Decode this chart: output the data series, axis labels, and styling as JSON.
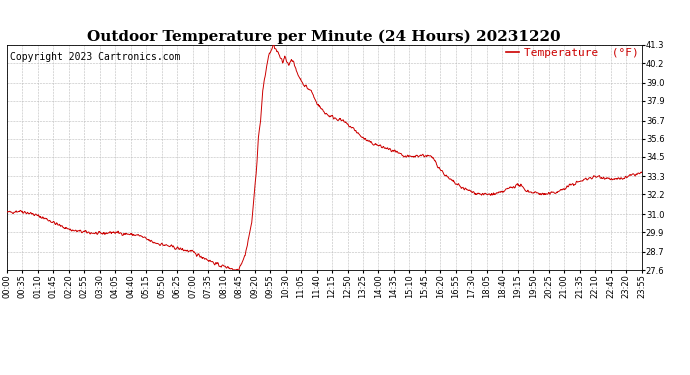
{
  "title": "Outdoor Temperature per Minute (24 Hours) 20231220",
  "copyright": "Copyright 2023 Cartronics.com",
  "legend_label": "Temperature  (°F)",
  "line_color": "#cc0000",
  "legend_color": "#cc0000",
  "background_color": "#ffffff",
  "grid_color": "#bbbbbb",
  "text_color": "#000000",
  "ylim": [
    27.6,
    41.3
  ],
  "yticks": [
    27.6,
    28.7,
    29.9,
    31.0,
    32.2,
    33.3,
    34.5,
    35.6,
    36.7,
    37.9,
    39.0,
    40.2,
    41.3
  ],
  "xtick_labels": [
    "00:00",
    "00:35",
    "01:10",
    "01:45",
    "02:20",
    "02:55",
    "03:30",
    "04:05",
    "04:40",
    "05:15",
    "05:50",
    "06:25",
    "07:00",
    "07:35",
    "08:10",
    "08:45",
    "09:20",
    "09:55",
    "10:30",
    "11:05",
    "11:40",
    "12:15",
    "12:50",
    "13:25",
    "14:00",
    "14:35",
    "15:10",
    "15:45",
    "16:20",
    "16:55",
    "17:30",
    "18:05",
    "18:40",
    "19:15",
    "19:50",
    "20:25",
    "21:00",
    "21:35",
    "22:10",
    "22:45",
    "23:20",
    "23:55"
  ],
  "title_fontsize": 11,
  "tick_fontsize": 6,
  "copyright_fontsize": 7,
  "legend_fontsize": 8
}
